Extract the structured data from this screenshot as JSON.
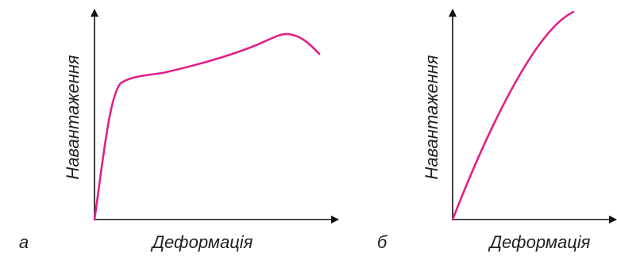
{
  "panel_a": {
    "letter": "а",
    "y_label": "Навантаження",
    "x_label": "Деформація"
  },
  "panel_b": {
    "letter": "б",
    "y_label": "Навантаження",
    "x_label": "Деформація"
  }
}
